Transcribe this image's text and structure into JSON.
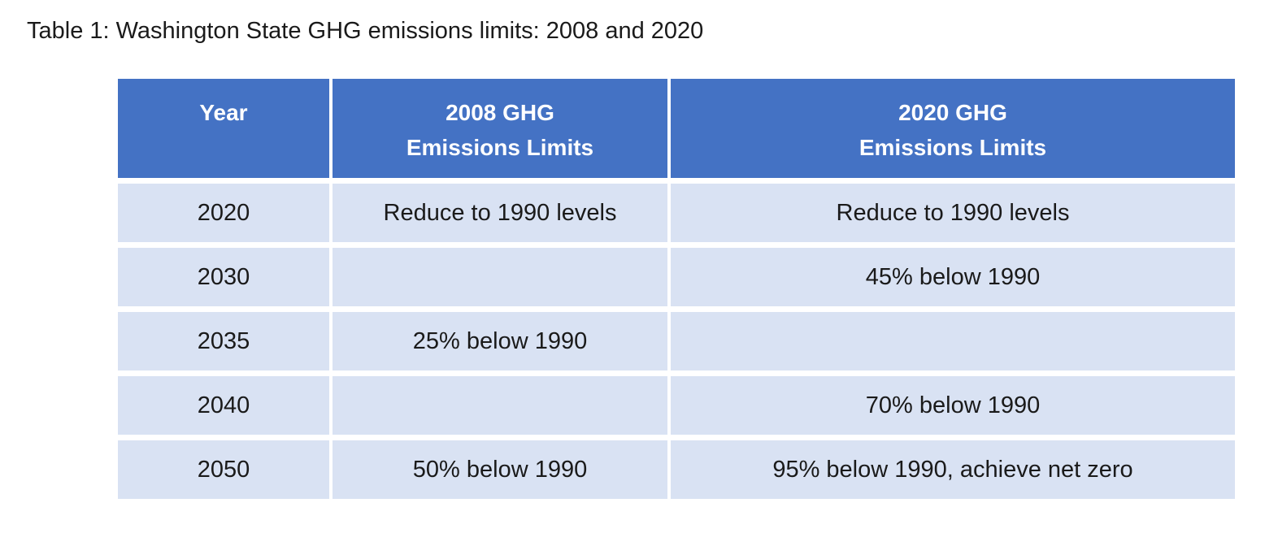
{
  "page": {
    "title": "Table 1: Washington State GHG emissions limits: 2008 and 2020"
  },
  "colors": {
    "page_bg": "#FFFFFF",
    "header_bg": "#4472C4",
    "header_text": "#FFFFFF",
    "row_bg": "#D9E2F3",
    "body_text": "#1A1A1A"
  },
  "table": {
    "columns": [
      {
        "label": "Year"
      },
      {
        "label": "2008 GHG\nEmissions Limits"
      },
      {
        "label": "2020 GHG\nEmissions Limits"
      }
    ],
    "rows": [
      {
        "year": "2020",
        "limit_2008": "Reduce to 1990 levels",
        "limit_2020": "Reduce to 1990 levels"
      },
      {
        "year": "2030",
        "limit_2008": "",
        "limit_2020": "45% below 1990"
      },
      {
        "year": "2035",
        "limit_2008": "25% below 1990",
        "limit_2020": ""
      },
      {
        "year": "2040",
        "limit_2008": "",
        "limit_2020": "70% below 1990"
      },
      {
        "year": "2050",
        "limit_2008": "50% below 1990",
        "limit_2020": "95% below 1990, achieve net zero"
      }
    ]
  },
  "chart_data": {
    "type": "table",
    "title": "Table 1: Washington State GHG emissions limits: 2008 and 2020",
    "columns": [
      "Year",
      "2008 GHG Emissions Limits",
      "2020 GHG Emissions Limits"
    ],
    "rows": [
      [
        "2020",
        "Reduce to 1990 levels",
        "Reduce to 1990 levels"
      ],
      [
        "2030",
        "",
        "45% below 1990"
      ],
      [
        "2035",
        "25% below 1990",
        ""
      ],
      [
        "2040",
        "",
        "70% below 1990"
      ],
      [
        "2050",
        "50% below 1990",
        "95% below 1990, achieve net zero"
      ]
    ]
  }
}
